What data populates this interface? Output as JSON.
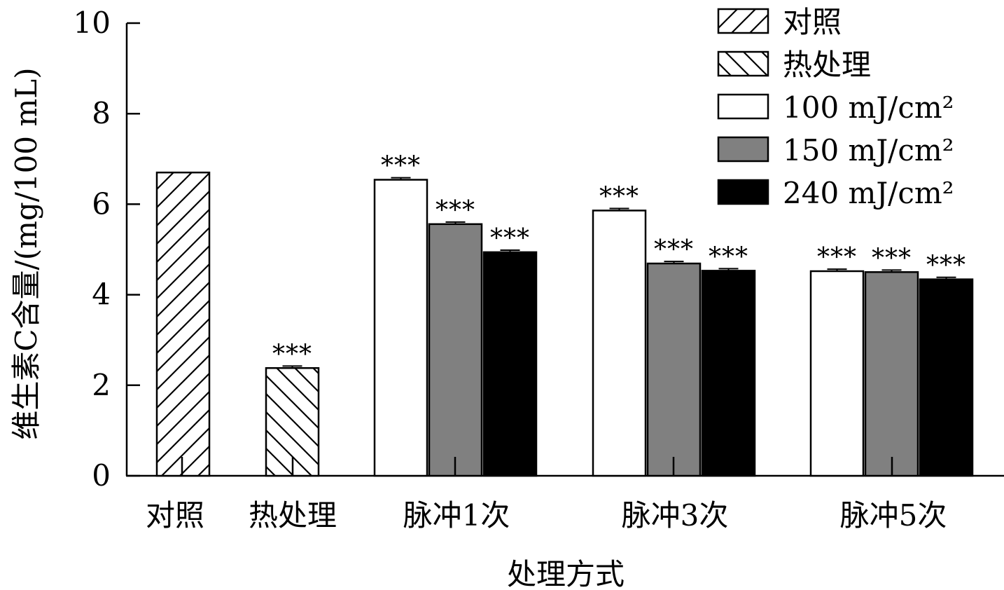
{
  "chart_data": {
    "type": "bar",
    "xlabel": "处理方式",
    "ylabel": "维生素C含量/(mg/100 mL)",
    "ylim": [
      0,
      10
    ],
    "yticks": [
      "0",
      "2",
      "4",
      "6",
      "8",
      "10"
    ],
    "legend_position": "top-right",
    "categories": [
      "对照",
      "热处理",
      "脉冲1次",
      "脉冲3次",
      "脉冲5次"
    ],
    "series": [
      {
        "name": "对照",
        "pattern": "hatch-forward",
        "fill": "#ffffff",
        "values": [
          6.7,
          null,
          null,
          null,
          null
        ],
        "errors": [
          0,
          null,
          null,
          null,
          null
        ],
        "significance": [
          "",
          null,
          null,
          null,
          null
        ]
      },
      {
        "name": "热处理",
        "pattern": "hatch-backward",
        "fill": "#ffffff",
        "values": [
          null,
          2.38,
          null,
          null,
          null
        ],
        "errors": [
          null,
          0.03,
          null,
          null,
          null
        ],
        "significance": [
          null,
          "***",
          null,
          null,
          null
        ]
      },
      {
        "name": "100 mJ/cm²",
        "pattern": "solid",
        "fill": "#ffffff",
        "values": [
          null,
          null,
          6.54,
          5.86,
          4.52
        ],
        "errors": [
          null,
          null,
          0.03,
          0.03,
          0.03
        ],
        "significance": [
          null,
          null,
          "***",
          "***",
          "***"
        ]
      },
      {
        "name": "150 mJ/cm²",
        "pattern": "solid",
        "fill": "#808080",
        "values": [
          null,
          null,
          5.56,
          4.69,
          4.5
        ],
        "errors": [
          null,
          null,
          0.03,
          0.03,
          0.03
        ],
        "significance": [
          null,
          null,
          "***",
          "***",
          "***"
        ]
      },
      {
        "name": "240 mJ/cm²",
        "pattern": "solid",
        "fill": "#000000",
        "values": [
          null,
          null,
          4.94,
          4.53,
          4.34
        ],
        "errors": [
          null,
          null,
          0.03,
          0.03,
          0.03
        ],
        "significance": [
          null,
          null,
          "***",
          "***",
          "***"
        ]
      }
    ]
  }
}
